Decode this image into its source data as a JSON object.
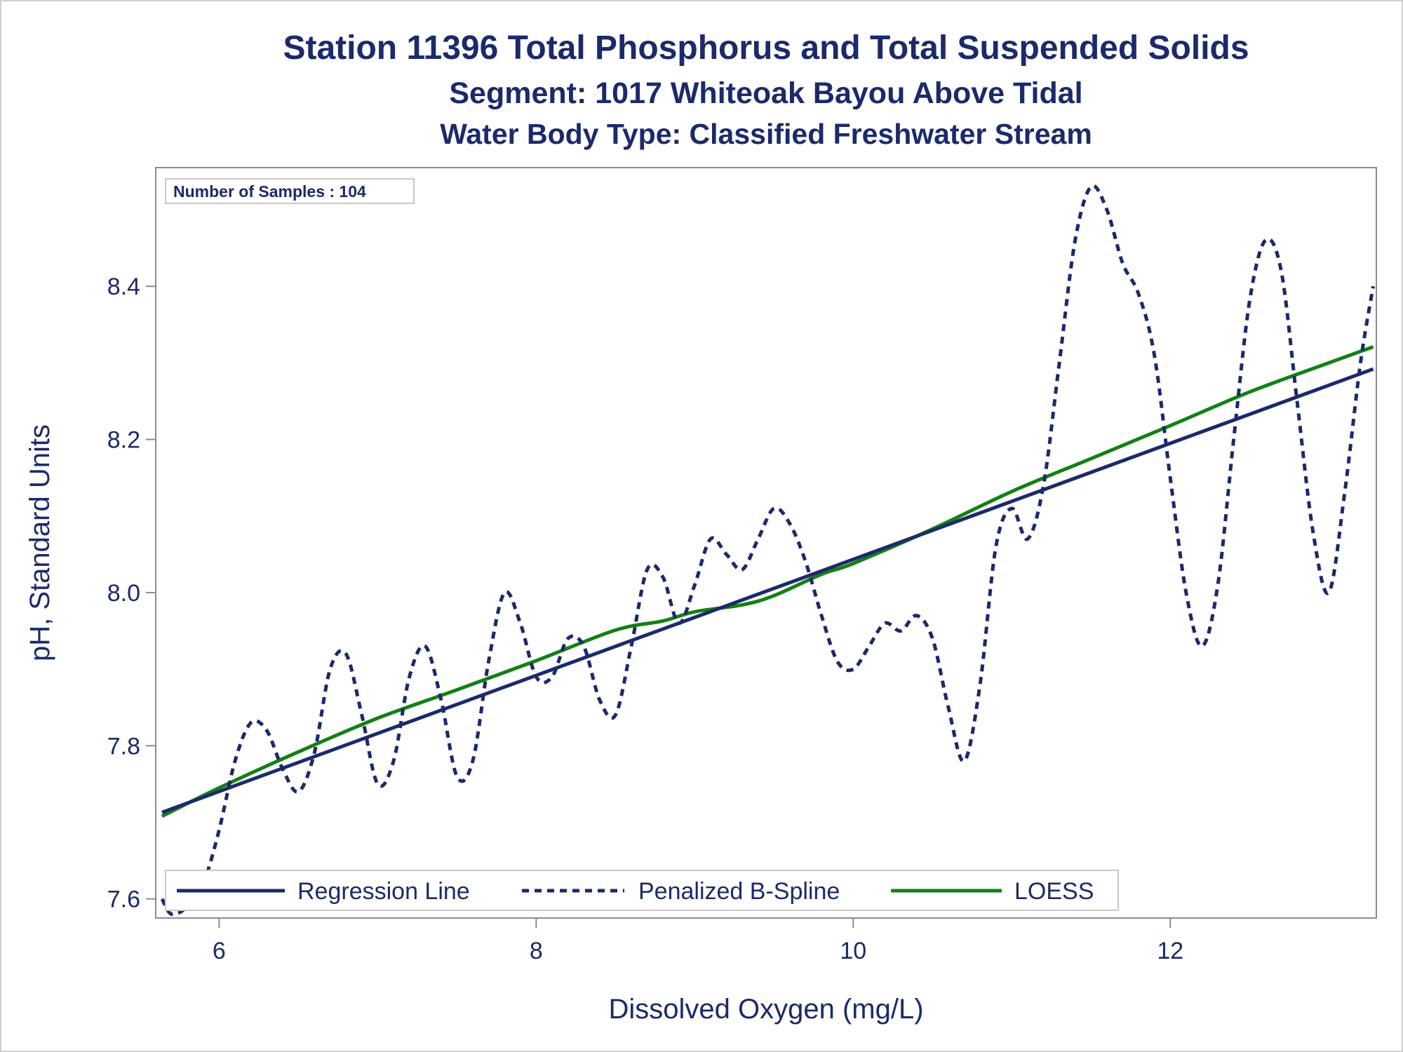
{
  "chart_data": {
    "type": "line",
    "title": "Station 11396  Total Phosphorus and Total Suspended Solids",
    "subtitle": "Segment: 1017  Whiteoak Bayou Above Tidal",
    "subtitle2": "Water Body Type: Classified Freshwater Stream",
    "xlabel": "Dissolved Oxygen (mg/L)",
    "ylabel": "pH, Standard Units",
    "xlim": [
      5.6,
      13.3
    ],
    "ylim": [
      7.575,
      8.555
    ],
    "x_ticks": [
      6,
      8,
      10,
      12
    ],
    "x_tick_labels": [
      "6",
      "8",
      "10",
      "12"
    ],
    "y_ticks": [
      7.6,
      7.8,
      8.0,
      8.2,
      8.4
    ],
    "y_tick_labels": [
      "7.6",
      "7.8",
      "8.0",
      "8.2",
      "8.4"
    ],
    "grid": false,
    "inset_label": "Number of Samples : 104",
    "legend_position": "bottom-left",
    "series": [
      {
        "name": "Regression Line",
        "style": "solid",
        "color": "#1b2a6b",
        "x": [
          5.64,
          13.28
        ],
        "y": [
          7.713,
          8.292
        ]
      },
      {
        "name": "Penalized B-Spline",
        "style": "dashed",
        "color": "#1b2a6b",
        "x": [
          5.64,
          5.7,
          5.8,
          5.9,
          6.0,
          6.1,
          6.2,
          6.3,
          6.4,
          6.5,
          6.6,
          6.7,
          6.8,
          6.9,
          7.0,
          7.1,
          7.2,
          7.3,
          7.4,
          7.5,
          7.6,
          7.7,
          7.8,
          7.9,
          8.0,
          8.1,
          8.2,
          8.3,
          8.4,
          8.5,
          8.6,
          8.7,
          8.8,
          8.9,
          9.0,
          9.1,
          9.2,
          9.3,
          9.4,
          9.5,
          9.6,
          9.7,
          9.8,
          9.9,
          10.0,
          10.1,
          10.2,
          10.3,
          10.4,
          10.5,
          10.6,
          10.7,
          10.8,
          10.9,
          11.0,
          11.1,
          11.2,
          11.3,
          11.4,
          11.5,
          11.6,
          11.7,
          11.8,
          11.9,
          12.0,
          12.1,
          12.2,
          12.3,
          12.4,
          12.5,
          12.6,
          12.7,
          12.8,
          12.9,
          13.0,
          13.1,
          13.2,
          13.28
        ],
        "y": [
          7.6,
          7.58,
          7.59,
          7.62,
          7.69,
          7.78,
          7.83,
          7.82,
          7.77,
          7.74,
          7.79,
          7.9,
          7.92,
          7.84,
          7.75,
          7.78,
          7.89,
          7.93,
          7.86,
          7.76,
          7.78,
          7.91,
          8.0,
          7.96,
          7.89,
          7.89,
          7.94,
          7.93,
          7.86,
          7.84,
          7.93,
          8.03,
          8.02,
          7.96,
          8.01,
          8.07,
          8.05,
          8.03,
          8.07,
          8.11,
          8.09,
          8.04,
          7.97,
          7.91,
          7.9,
          7.93,
          7.96,
          7.95,
          7.97,
          7.94,
          7.85,
          7.78,
          7.88,
          8.06,
          8.11,
          8.07,
          8.14,
          8.3,
          8.46,
          8.53,
          8.5,
          8.43,
          8.39,
          8.31,
          8.15,
          8.0,
          7.93,
          8.01,
          8.2,
          8.38,
          8.46,
          8.42,
          8.25,
          8.08,
          8.0,
          8.13,
          8.3,
          8.4
        ]
      },
      {
        "name": "LOESS",
        "style": "solid",
        "color": "#138013",
        "x": [
          5.64,
          6.0,
          6.5,
          7.0,
          7.5,
          8.0,
          8.5,
          8.8,
          9.0,
          9.3,
          9.5,
          9.8,
          10.0,
          10.5,
          11.0,
          11.5,
          12.0,
          12.5,
          13.0,
          13.28
        ],
        "y": [
          7.708,
          7.745,
          7.792,
          7.836,
          7.873,
          7.911,
          7.951,
          7.963,
          7.975,
          7.984,
          7.996,
          8.024,
          8.038,
          8.083,
          8.132,
          8.175,
          8.218,
          8.262,
          8.3,
          8.321
        ]
      }
    ]
  }
}
